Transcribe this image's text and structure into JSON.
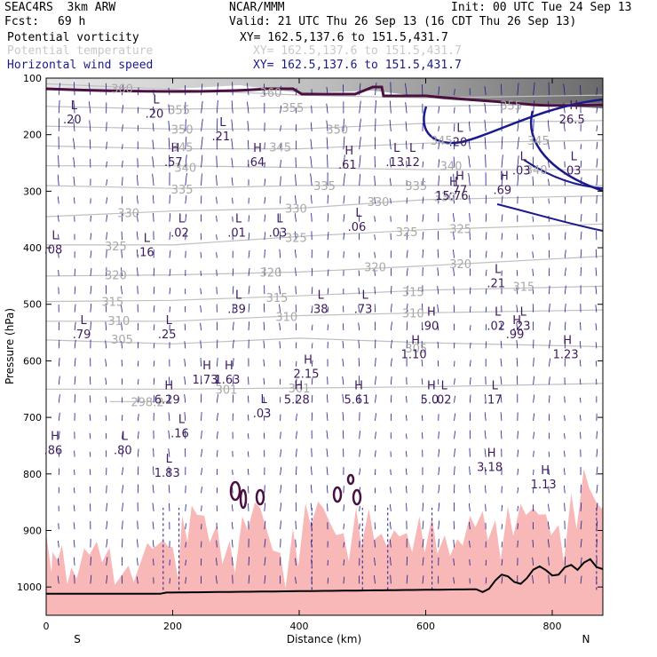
{
  "header": {
    "model_line": "SEAC4RS  3km ARW",
    "source": "NCAR/MMM",
    "init": "Init: 00 UTC Tue 24 Sep 13",
    "fcst_label": "Fcst:",
    "fcst_value": "69 h",
    "valid": "Valid: 21 UTC Thu 26 Sep 13 (16 CDT Thu 26 Sep 13)"
  },
  "fields": [
    {
      "name": "Potential vorticity",
      "xy": "XY= 162.5,137.6 to 151.5,431.7",
      "color": "#000000"
    },
    {
      "name": "Potential temperature",
      "xy": "XY= 162.5,137.6 to 151.5,431.7",
      "color": "#c8c8c8"
    },
    {
      "name": "Horizontal wind speed",
      "xy": "XY= 162.5,137.6 to 151.5,431.7",
      "color": "#1a1a8c"
    }
  ],
  "chart_data": {
    "type": "cross-section",
    "xlabel": "Distance (km)",
    "ylabel": "Pressure (hPa)",
    "xlim": [
      0,
      880
    ],
    "ylim": [
      1050,
      100
    ],
    "x_ticks": [
      0,
      200,
      400,
      600,
      800
    ],
    "y_ticks": [
      100,
      200,
      300,
      400,
      500,
      600,
      700,
      800,
      900,
      1000
    ],
    "x_end_labels": {
      "left": "S",
      "right": "N"
    },
    "theta_contours": [
      {
        "label": "360",
        "points": [
          [
            0,
            110
          ],
          [
            200,
            120
          ],
          [
            400,
            130
          ],
          [
            600,
            135
          ],
          [
            880,
            130
          ]
        ],
        "labels_at": [
          [
            120,
            118
          ],
          [
            355,
            125
          ]
        ]
      },
      {
        "label": "355",
        "points": [
          [
            0,
            150
          ],
          [
            200,
            155
          ],
          [
            400,
            152
          ],
          [
            600,
            150
          ],
          [
            880,
            145
          ]
        ],
        "labels_at": [
          [
            210,
            156
          ],
          [
            390,
            152
          ],
          [
            735,
            148
          ]
        ]
      },
      {
        "label": "350",
        "points": [
          [
            0,
            185
          ],
          [
            200,
            190
          ],
          [
            400,
            190
          ],
          [
            600,
            180
          ],
          [
            880,
            175
          ]
        ],
        "labels_at": [
          [
            215,
            190
          ],
          [
            460,
            190
          ]
        ]
      },
      {
        "label": "345",
        "points": [
          [
            0,
            220
          ],
          [
            200,
            225
          ],
          [
            400,
            225
          ],
          [
            600,
            215
          ],
          [
            880,
            210
          ]
        ],
        "labels_at": [
          [
            215,
            222
          ],
          [
            370,
            222
          ],
          [
            625,
            210
          ],
          [
            778,
            210
          ]
        ]
      },
      {
        "label": "340",
        "points": [
          [
            0,
            255
          ],
          [
            200,
            255
          ],
          [
            400,
            258
          ],
          [
            600,
            262
          ],
          [
            880,
            262
          ]
        ],
        "labels_at": [
          [
            220,
            258
          ],
          [
            640,
            255
          ],
          [
            775,
            262
          ]
        ]
      },
      {
        "label": "335",
        "points": [
          [
            0,
            290
          ],
          [
            200,
            295
          ],
          [
            400,
            290
          ],
          [
            600,
            290
          ],
          [
            880,
            290
          ]
        ],
        "labels_at": [
          [
            215,
            296
          ],
          [
            440,
            290
          ],
          [
            585,
            290
          ]
        ]
      },
      {
        "label": "330",
        "points": [
          [
            0,
            345
          ],
          [
            200,
            335
          ],
          [
            400,
            330
          ],
          [
            600,
            315
          ],
          [
            880,
            308
          ]
        ],
        "labels_at": [
          [
            130,
            338
          ],
          [
            395,
            330
          ],
          [
            525,
            318
          ],
          [
            630,
            310
          ]
        ]
      },
      {
        "label": "325",
        "points": [
          [
            0,
            395
          ],
          [
            200,
            395
          ],
          [
            400,
            380
          ],
          [
            600,
            368
          ],
          [
            880,
            358
          ]
        ],
        "labels_at": [
          [
            110,
            397
          ],
          [
            395,
            382
          ],
          [
            570,
            372
          ],
          [
            655,
            366
          ]
        ]
      },
      {
        "label": "320",
        "points": [
          [
            0,
            450
          ],
          [
            200,
            448
          ],
          [
            400,
            443
          ],
          [
            600,
            432
          ],
          [
            880,
            415
          ]
        ],
        "labels_at": [
          [
            110,
            448
          ],
          [
            355,
            443
          ],
          [
            520,
            434
          ],
          [
            655,
            428
          ]
        ]
      },
      {
        "label": "315",
        "points": [
          [
            0,
            495
          ],
          [
            200,
            493
          ],
          [
            400,
            485
          ],
          [
            600,
            475
          ],
          [
            880,
            468
          ]
        ],
        "labels_at": [
          [
            105,
            495
          ],
          [
            365,
            488
          ],
          [
            580,
            478
          ],
          [
            755,
            468
          ]
        ]
      },
      {
        "label": "310",
        "points": [
          [
            0,
            530
          ],
          [
            200,
            530
          ],
          [
            400,
            520
          ],
          [
            600,
            515
          ],
          [
            880,
            510
          ]
        ],
        "labels_at": [
          [
            115,
            529
          ],
          [
            380,
            522
          ],
          [
            580,
            515
          ]
        ]
      },
      {
        "label": "305",
        "points": [
          [
            0,
            563
          ],
          [
            200,
            570
          ],
          [
            400,
            560
          ],
          [
            600,
            568
          ],
          [
            880,
            575
          ]
        ],
        "labels_at": [
          [
            120,
            562
          ],
          [
            585,
            577
          ]
        ]
      },
      {
        "label": "301",
        "points": [
          [
            0,
            650
          ],
          [
            200,
            650
          ],
          [
            400,
            648
          ],
          [
            600,
            646
          ],
          [
            880,
            640
          ]
        ],
        "labels_at": [
          [
            285,
            650
          ],
          [
            400,
            648
          ]
        ]
      },
      {
        "label": "298.2",
        "points": [
          [
            100,
            672
          ],
          [
            200,
            672
          ]
        ],
        "labels_at": [
          [
            160,
            672
          ]
        ]
      }
    ],
    "pv_extrema": [
      {
        "kind": "L",
        "value": ".20"
      },
      {
        "kind": "L",
        "value": ".20"
      },
      {
        "kind": "L",
        "value": ".21"
      },
      {
        "kind": "H",
        "value": ".57"
      },
      {
        "kind": "H",
        "value": ".64"
      },
      {
        "kind": "H",
        "value": ".61"
      },
      {
        "kind": "L",
        "value": ".13"
      },
      {
        "kind": "L",
        "value": ".12"
      },
      {
        "kind": "L",
        "value": ".03"
      },
      {
        "kind": "L",
        "value": ".03"
      },
      {
        "kind": "L",
        "value": ".20"
      },
      {
        "kind": "H",
        "value": "26.5"
      },
      {
        "kind": "H",
        "value": ".77"
      },
      {
        "kind": "H",
        "value": "15.76"
      },
      {
        "kind": "H",
        "value": ".69"
      },
      {
        "kind": "L",
        "value": ".06"
      },
      {
        "kind": "L",
        "value": ".02"
      },
      {
        "kind": "L",
        "value": ".01"
      },
      {
        "kind": "L",
        "value": ".03"
      },
      {
        "kind": "L",
        "value": ".08"
      },
      {
        "kind": "L",
        "value": ".16"
      },
      {
        "kind": "L",
        "value": ".21"
      },
      {
        "kind": "L",
        "value": ".39"
      },
      {
        "kind": "L",
        "value": ".38"
      },
      {
        "kind": "L",
        "value": ".73"
      },
      {
        "kind": "L",
        "value": ".79"
      },
      {
        "kind": "L",
        "value": ".25"
      },
      {
        "kind": "H",
        "value": ".90"
      },
      {
        "kind": "L",
        "value": ".02"
      },
      {
        "kind": "L",
        "value": ".23"
      },
      {
        "kind": "H",
        "value": ".99"
      },
      {
        "kind": "H",
        "value": "1.10"
      },
      {
        "kind": "H",
        "value": "1.23"
      },
      {
        "kind": "H",
        "value": "1.73"
      },
      {
        "kind": "H",
        "value": "1.63"
      },
      {
        "kind": "H",
        "value": "2.15"
      },
      {
        "kind": "H",
        "value": "6.29"
      },
      {
        "kind": "H",
        "value": "5.28"
      },
      {
        "kind": "H",
        "value": "5.61"
      },
      {
        "kind": "H",
        "value": "5.0"
      },
      {
        "kind": "L",
        "value": ".02"
      },
      {
        "kind": "L",
        "value": ".17"
      },
      {
        "kind": "L",
        "value": ".03"
      },
      {
        "kind": "L",
        "value": ".16"
      },
      {
        "kind": "H",
        "value": ".86"
      },
      {
        "kind": "L",
        "value": ".80"
      },
      {
        "kind": "L",
        "value": "1.83"
      },
      {
        "kind": "H",
        "value": "3.18"
      },
      {
        "kind": "H",
        "value": "1.13"
      }
    ],
    "colors": {
      "pv_contour": "#4a1040",
      "theta_contour": "#c0c0c0",
      "wind_vector": "#1a1a8c",
      "shading": "#f8b8b8",
      "terrain": "#000000",
      "jet_contour": "#1a1a8c"
    }
  }
}
